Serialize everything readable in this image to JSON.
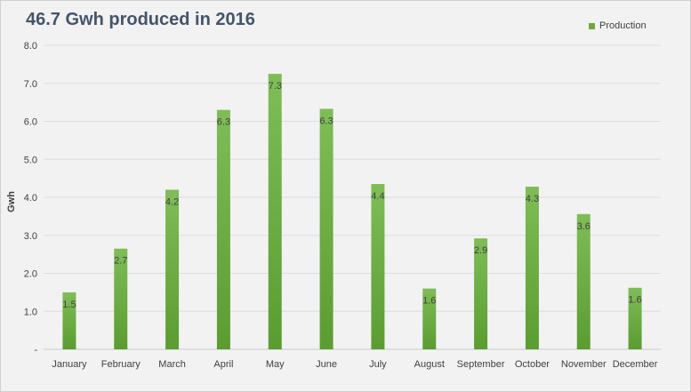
{
  "chart_data": {
    "type": "bar",
    "title": "46.7 Gwh produced in 2016",
    "ylabel": "Gwh",
    "xlabel": "",
    "ylim": [
      0,
      8
    ],
    "yticks": [
      "-",
      "1.0",
      "2.0",
      "3.0",
      "4.0",
      "5.0",
      "6.0",
      "7.0",
      "8.0"
    ],
    "grid": true,
    "legend_position": "top-right",
    "categories": [
      "January",
      "February",
      "March",
      "April",
      "May",
      "June",
      "July",
      "August",
      "September",
      "October",
      "November",
      "December"
    ],
    "series": [
      {
        "name": "Production",
        "color": "#6aaa3f",
        "values": [
          1.5,
          2.65,
          4.2,
          6.3,
          7.25,
          6.33,
          4.35,
          1.6,
          2.92,
          4.28,
          3.56,
          1.62
        ],
        "labels": [
          "1.5",
          "2.7",
          "4.2",
          "6.3",
          "7.3",
          "6.3",
          "4.4",
          "1.6",
          "2.9",
          "4.3",
          "3.6",
          "1.6"
        ]
      }
    ]
  }
}
